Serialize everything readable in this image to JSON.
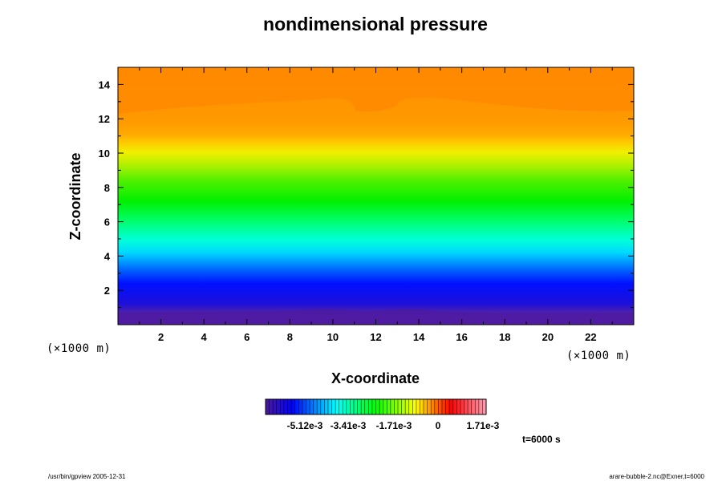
{
  "chart_data": {
    "type": "heatmap",
    "title": "nondimensional pressure",
    "xlabel": "X-coordinate",
    "ylabel": "Z-coordinate",
    "xunit": "(×1000 m)",
    "yunit": "(×1000 m)",
    "xlim": [
      0,
      24
    ],
    "ylim": [
      0,
      15
    ],
    "xticks": [
      "2",
      "4",
      "6",
      "8",
      "10",
      "12",
      "14",
      "16",
      "18",
      "20",
      "22"
    ],
    "xtick_values": [
      2,
      4,
      6,
      8,
      10,
      12,
      14,
      16,
      18,
      20,
      22
    ],
    "yticks": [
      "2",
      "4",
      "6",
      "8",
      "10",
      "12",
      "14"
    ],
    "ytick_values": [
      2,
      4,
      6,
      8,
      10,
      12,
      14
    ],
    "colorbar": {
      "labels": [
        "-5.12e-3",
        "-3.41e-3",
        "-1.71e-3",
        "0",
        "1.71e-3"
      ],
      "colors": [
        "#4b1a99",
        "#0000ff",
        "#00ffff",
        "#00ff00",
        "#ffff00",
        "#ff0000",
        "#ff9fb0"
      ]
    },
    "time_label": "t=6000 s"
  },
  "footer": {
    "left": "/usr/bin/gpview 2005-12-31",
    "right": "arare-bubble-2.nc@Exner,t=6000"
  }
}
